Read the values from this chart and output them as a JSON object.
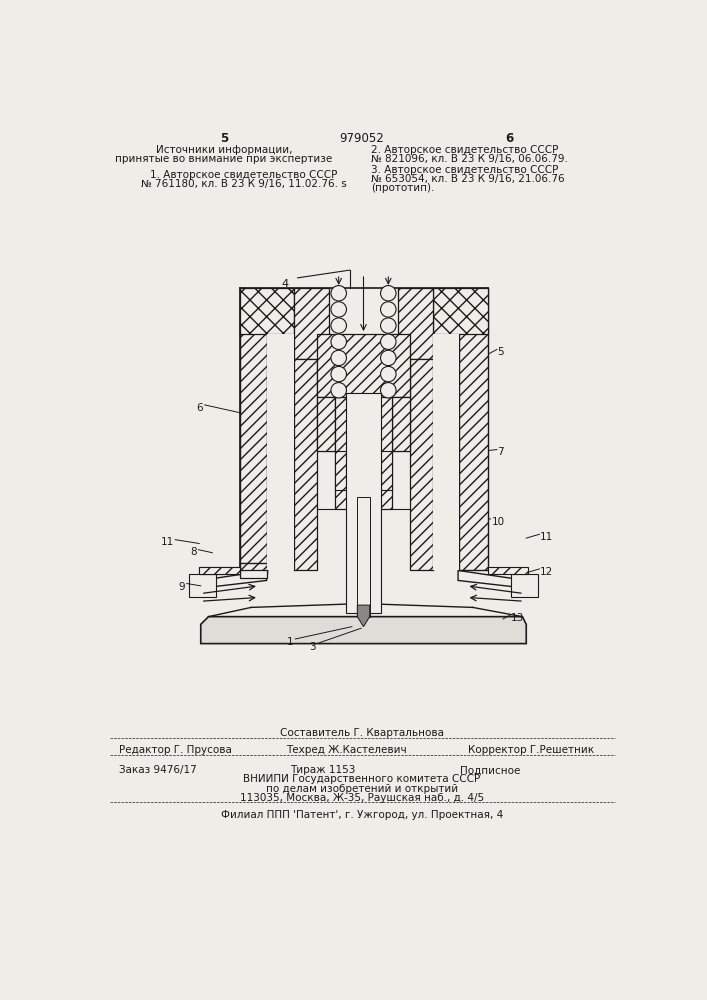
{
  "bg_color": "#f0ede8",
  "text_color": "#1a1a1a",
  "line_color": "#1a1a1a",
  "page_width": 7.07,
  "page_height": 10.0,
  "header": {
    "page_left": "5",
    "page_right": "6",
    "patent_number": "979052",
    "col_left_title": "Источники информации,",
    "col_left_sub": "принятые во внимание при экспертизе",
    "col_left_ref1_line1": "1. Авторское свидетельство СССР",
    "col_left_ref1_line2": "№ 761180, кл. В 23 К 9/16, 11.02.76. s",
    "col_right_ref2_line1": "2. Авторское свидетельство СССР",
    "col_right_ref2_line2": "№ 821096, кл. В 23 К 9/16, 06.06.79.",
    "col_right_ref3_line1": "3. Авторское свидетельство СССР",
    "col_right_ref3_line2": "№ 653054, кл. В 23 К 9/16, 21.06.76",
    "col_right_ref3_line3": "(прототип)."
  },
  "footer": {
    "composer": "Составитель Г. Квартальнова",
    "editor": "Редактор Г. Прусова",
    "techred": "Техред Ж.Кастелевич",
    "corrector": "Корректор Г.Решетник",
    "order": "Заказ 9476/17",
    "tirazh": "Тираж 1153",
    "podpisnoe": "Подписное",
    "vniipи_line1": "ВНИИПИ Государственного комитета СССР",
    "vniipи_line2": "по делам изобретений и открытий",
    "vniipи_line3": "113035, Москва, Ж-35, Раушская наб., д. 4/5",
    "filial": "Филиал ППП 'Патент', г. Ужгород, ул. Проектная, 4"
  }
}
